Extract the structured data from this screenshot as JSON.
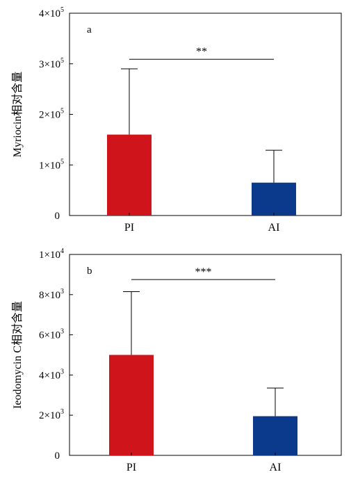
{
  "chart_data": [
    {
      "type": "bar",
      "panel_label": "a",
      "ylabel": "Myriocin相对含量",
      "categories": [
        "PI",
        "AI"
      ],
      "values": [
        160000,
        65000
      ],
      "error_upper": [
        290000,
        129000
      ],
      "ylim": [
        0,
        400000
      ],
      "yticks": [
        {
          "value": 0,
          "base": "0",
          "exp": ""
        },
        {
          "value": 100000,
          "base": "1×10",
          "exp": "5"
        },
        {
          "value": 200000,
          "base": "2×10",
          "exp": "5"
        },
        {
          "value": 300000,
          "base": "3×10",
          "exp": "5"
        },
        {
          "value": 400000,
          "base": "4×10",
          "exp": "5"
        }
      ],
      "colors": [
        "#d0141c",
        "#0b3a8c"
      ],
      "significance": {
        "label": "**",
        "y": 309000
      },
      "grid": false
    },
    {
      "type": "bar",
      "panel_label": "b",
      "ylabel": "Ieodomycin C相对含量",
      "categories": [
        "PI",
        "AI"
      ],
      "values": [
        5000,
        1950
      ],
      "error_upper": [
        8150,
        3350
      ],
      "ylim": [
        0,
        10000
      ],
      "yticks": [
        {
          "value": 0,
          "base": "0",
          "exp": ""
        },
        {
          "value": 2000,
          "base": "2×10",
          "exp": "3"
        },
        {
          "value": 4000,
          "base": "4×10",
          "exp": "3"
        },
        {
          "value": 6000,
          "base": "6×10",
          "exp": "3"
        },
        {
          "value": 8000,
          "base": "8×10",
          "exp": "3"
        },
        {
          "value": 10000,
          "base": "1×10",
          "exp": "4"
        }
      ],
      "colors": [
        "#d0141c",
        "#0b3a8c"
      ],
      "significance": {
        "label": "***",
        "y": 8750
      },
      "grid": false
    }
  ]
}
